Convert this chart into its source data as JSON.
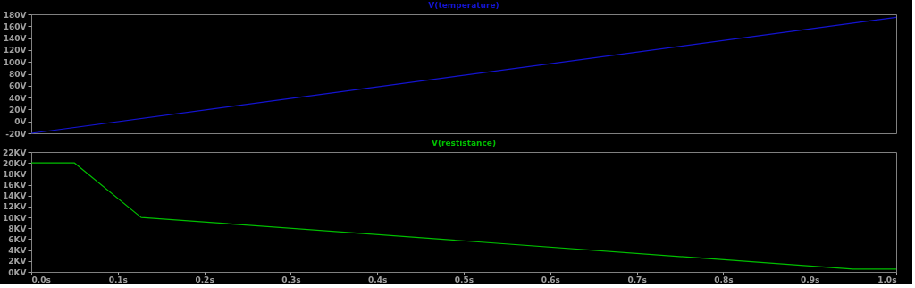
{
  "chart_data": [
    {
      "type": "line",
      "title": "V(temperature)",
      "tick_labels": "y",
      "x": [
        0,
        1.0
      ],
      "xlim": [
        0,
        1.0
      ],
      "series": [
        {
          "color": "#1414d2",
          "values": [
            -20,
            175
          ]
        }
      ],
      "ylim": [
        -20,
        180
      ],
      "yticks": [
        {
          "value": -20,
          "label": "-20V"
        },
        {
          "value": 0,
          "label": "0V"
        },
        {
          "value": 20,
          "label": "20V"
        },
        {
          "value": 40,
          "label": "40V"
        },
        {
          "value": 60,
          "label": "60V"
        },
        {
          "value": 80,
          "label": "80V"
        },
        {
          "value": 100,
          "label": "100V"
        },
        {
          "value": 120,
          "label": "120V"
        },
        {
          "value": 140,
          "label": "140V"
        },
        {
          "value": 160,
          "label": "160V"
        },
        {
          "value": 180,
          "label": "180V"
        }
      ],
      "grid": false
    },
    {
      "type": "line",
      "title": "V(restistance)",
      "x": [
        0,
        0.05,
        0.127,
        0.95,
        1.0
      ],
      "xlim": [
        0,
        1.0
      ],
      "series": [
        {
          "color": "#00c000",
          "values": [
            20,
            20,
            10,
            0.5,
            0.5
          ]
        }
      ],
      "ylim": [
        0,
        22
      ],
      "yticks": [
        {
          "value": 0,
          "label": "0KV"
        },
        {
          "value": 2,
          "label": "2KV"
        },
        {
          "value": 4,
          "label": "4KV"
        },
        {
          "value": 6,
          "label": "6KV"
        },
        {
          "value": 8,
          "label": "8KV"
        },
        {
          "value": 10,
          "label": "10KV"
        },
        {
          "value": 12,
          "label": "12KV"
        },
        {
          "value": 14,
          "label": "14KV"
        },
        {
          "value": 16,
          "label": "16KV"
        },
        {
          "value": 18,
          "label": "18KV"
        },
        {
          "value": 20,
          "label": "20KV"
        },
        {
          "value": 22,
          "label": "22KV"
        }
      ],
      "xticks": [
        {
          "value": 0,
          "label": "0.0s"
        },
        {
          "value": 0.1,
          "label": "0.1s"
        },
        {
          "value": 0.2,
          "label": "0.2s"
        },
        {
          "value": 0.3,
          "label": "0.3s"
        },
        {
          "value": 0.4,
          "label": "0.4s"
        },
        {
          "value": 0.5,
          "label": "0.5s"
        },
        {
          "value": 0.6,
          "label": "0.6s"
        },
        {
          "value": 0.7,
          "label": "0.7s"
        },
        {
          "value": 0.8,
          "label": "0.8s"
        },
        {
          "value": 0.9,
          "label": "0.9s"
        },
        {
          "value": 1.0,
          "label": "1.0s"
        }
      ],
      "grid": false
    }
  ]
}
